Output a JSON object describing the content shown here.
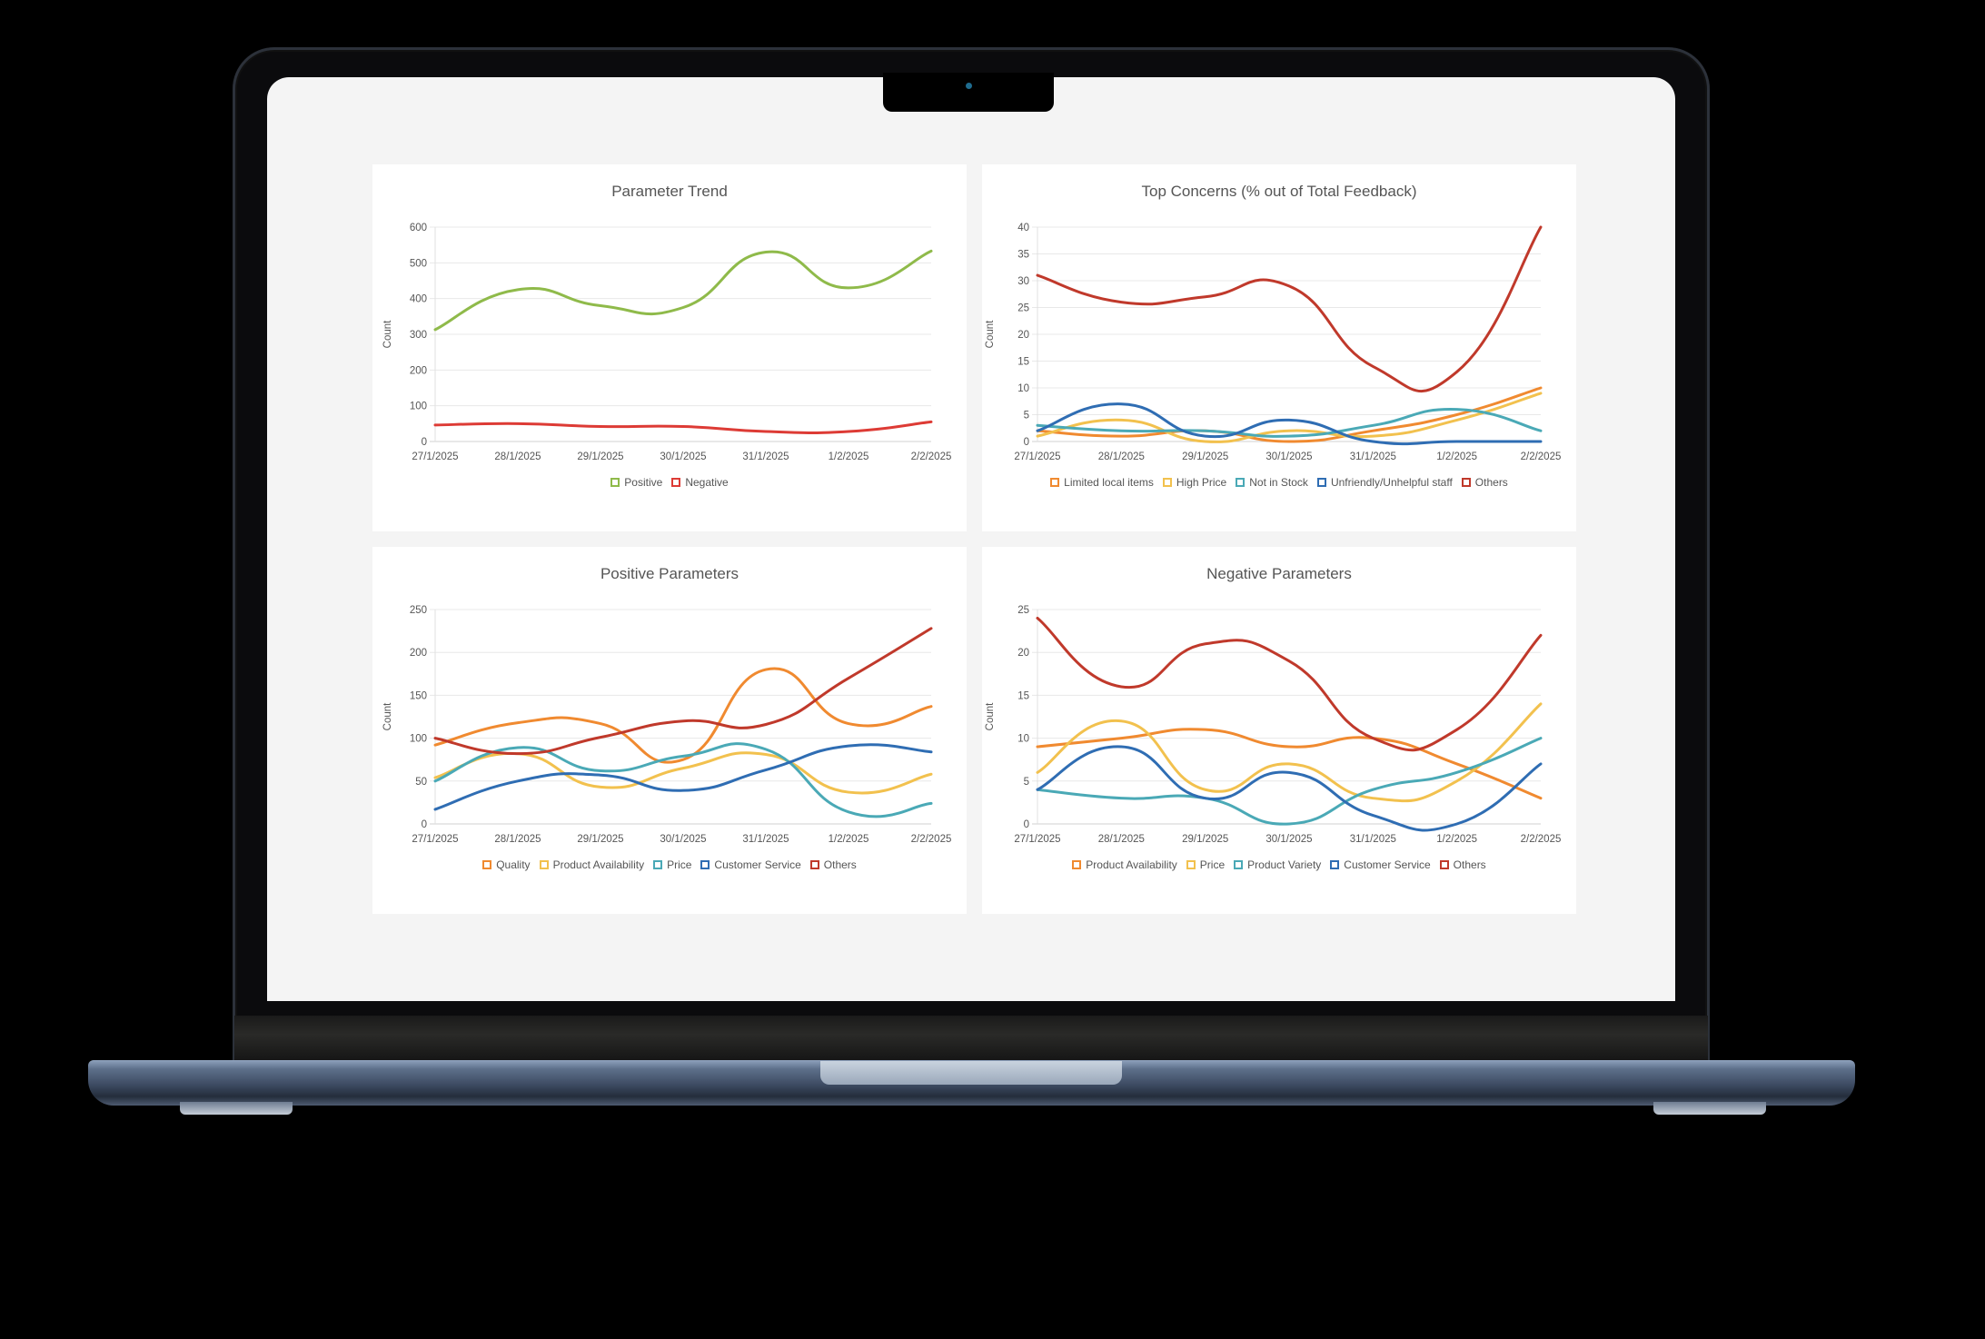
{
  "dashboard": {
    "dates": [
      "27/1/2025",
      "28/1/2025",
      "29/1/2025",
      "30/1/2025",
      "31/1/2025",
      "1/2/2025",
      "2/2/2025"
    ]
  },
  "chart_data": [
    {
      "id": "parameter-trend",
      "type": "line",
      "title": "Parameter Trend",
      "xlabel": "",
      "ylabel": "Count",
      "categories": [
        "27/1/2025",
        "28/1/2025",
        "29/1/2025",
        "30/1/2025",
        "31/1/2025",
        "1/2/2025",
        "2/2/2025"
      ],
      "ylim": [
        0,
        600
      ],
      "yticks": [
        0,
        100,
        200,
        300,
        400,
        500,
        600
      ],
      "grid": true,
      "legend_position": "bottom",
      "series": [
        {
          "name": "Positive",
          "color": "#8fba4a",
          "values": [
            313,
            425,
            380,
            375,
            530,
            430,
            533
          ]
        },
        {
          "name": "Negative",
          "color": "#dd3b35",
          "values": [
            46,
            50,
            42,
            42,
            28,
            28,
            55
          ]
        }
      ]
    },
    {
      "id": "top-concerns",
      "type": "line",
      "title": "Top Concerns (% out of Total Feedback)",
      "xlabel": "",
      "ylabel": "Count",
      "categories": [
        "27/1/2025",
        "28/1/2025",
        "29/1/2025",
        "30/1/2025",
        "31/1/2025",
        "1/2/2025",
        "2/2/2025"
      ],
      "ylim": [
        0,
        40
      ],
      "yticks": [
        0,
        5,
        10,
        15,
        20,
        25,
        30,
        35,
        40
      ],
      "grid": true,
      "legend_position": "bottom",
      "series": [
        {
          "name": "Limited local items",
          "color": "#f08a30",
          "values": [
            2,
            1,
            2,
            0,
            2,
            5,
            10
          ]
        },
        {
          "name": "High Price",
          "color": "#f2c14e",
          "values": [
            1,
            4,
            0,
            2,
            1,
            4,
            9
          ]
        },
        {
          "name": "Not in Stock",
          "color": "#4aa9b6",
          "values": [
            3,
            2,
            2,
            1,
            3,
            6,
            2
          ]
        },
        {
          "name": "Unfriendly/Unhelpful staff",
          "color": "#2f6db3",
          "values": [
            2,
            7,
            1,
            4,
            0,
            0,
            0
          ]
        },
        {
          "name": "Others",
          "color": "#c0392b",
          "values": [
            31,
            26,
            27,
            29,
            14,
            13,
            40
          ]
        }
      ]
    },
    {
      "id": "positive-parameters",
      "type": "line",
      "title": "Positive Parameters",
      "xlabel": "",
      "ylabel": "Count",
      "categories": [
        "27/1/2025",
        "28/1/2025",
        "29/1/2025",
        "30/1/2025",
        "31/1/2025",
        "1/2/2025",
        "2/2/2025"
      ],
      "ylim": [
        0,
        250
      ],
      "yticks": [
        0,
        50,
        100,
        150,
        200,
        250
      ],
      "grid": true,
      "legend_position": "bottom",
      "series": [
        {
          "name": "Quality",
          "color": "#f08a30",
          "values": [
            92,
            118,
            117,
            75,
            180,
            117,
            137
          ]
        },
        {
          "name": "Product Availability",
          "color": "#f2c14e",
          "values": [
            54,
            82,
            43,
            65,
            81,
            37,
            58
          ]
        },
        {
          "name": "Price",
          "color": "#4aa9b6",
          "values": [
            50,
            89,
            62,
            79,
            87,
            14,
            24
          ]
        },
        {
          "name": "Customer Service",
          "color": "#2f6db3",
          "values": [
            17,
            50,
            57,
            39,
            63,
            91,
            84
          ]
        },
        {
          "name": "Others",
          "color": "#c0392b",
          "values": [
            100,
            82,
            101,
            120,
            116,
            170,
            228
          ]
        }
      ]
    },
    {
      "id": "negative-parameters",
      "type": "line",
      "title": "Negative Parameters",
      "xlabel": "",
      "ylabel": "Count",
      "categories": [
        "27/1/2025",
        "28/1/2025",
        "29/1/2025",
        "30/1/2025",
        "31/1/2025",
        "1/2/2025",
        "2/2/2025"
      ],
      "ylim": [
        0,
        25
      ],
      "yticks": [
        0,
        5,
        10,
        15,
        20,
        25
      ],
      "grid": true,
      "legend_position": "bottom",
      "series": [
        {
          "name": "Product Availability",
          "color": "#f08a30",
          "values": [
            9,
            10,
            11,
            9,
            10,
            7,
            3
          ]
        },
        {
          "name": "Price",
          "color": "#f2c14e",
          "values": [
            6,
            12,
            4,
            7,
            3,
            5,
            14
          ]
        },
        {
          "name": "Product Variety",
          "color": "#4aa9b6",
          "values": [
            4,
            3,
            3,
            0,
            4,
            6,
            10
          ]
        },
        {
          "name": "Customer Service",
          "color": "#2f6db3",
          "values": [
            4,
            9,
            3,
            6,
            1,
            0,
            7
          ]
        },
        {
          "name": "Others",
          "color": "#c0392b",
          "values": [
            24,
            16,
            21,
            19,
            10,
            11,
            22
          ]
        }
      ]
    }
  ]
}
